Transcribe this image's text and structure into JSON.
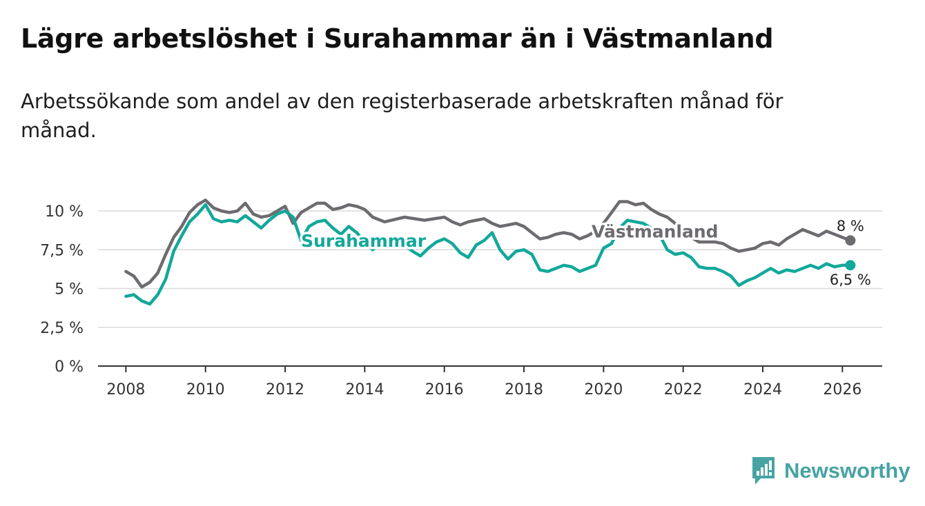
{
  "title": "Lägre arbetslöshet i Surahammar än i Västmanland",
  "subtitle": "Arbetssökande som andel av den registerbaserade arbetskraften månad för månad.",
  "brand": {
    "name": "Newsworthy",
    "icon": "newsworthy-logo-icon",
    "color": "#46a3a3"
  },
  "chart_data": {
    "type": "line",
    "title": "Lägre arbetslöshet i Surahammar än i Västmanland",
    "xlabel": "",
    "ylabel": "",
    "xlim": [
      2007.3,
      2027.0
    ],
    "ylim": [
      0,
      10
    ],
    "x_ticks": [
      {
        "value": 2008,
        "label": "2008"
      },
      {
        "value": 2010,
        "label": "2010"
      },
      {
        "value": 2012,
        "label": "2012"
      },
      {
        "value": 2014,
        "label": "2014"
      },
      {
        "value": 2016,
        "label": "2016"
      },
      {
        "value": 2018,
        "label": "2018"
      },
      {
        "value": 2020,
        "label": "2020"
      },
      {
        "value": 2022,
        "label": "2022"
      },
      {
        "value": 2024,
        "label": "2024"
      },
      {
        "value": 2026,
        "label": "2026"
      }
    ],
    "y_ticks": [
      {
        "value": 0,
        "label": "0 %"
      },
      {
        "value": 2.5,
        "label": "2,5 %"
      },
      {
        "value": 5,
        "label": "5 %"
      },
      {
        "value": 7.5,
        "label": "7,5 %"
      },
      {
        "value": 10,
        "label": "10 %"
      }
    ],
    "grid": true,
    "legend": "inline labels on lines",
    "series": [
      {
        "name": "Västmanland",
        "color": "#6e6b70",
        "end_label": "8 %",
        "end_label_position": "above",
        "label_at": 2019.7,
        "x": [
          2008.0,
          2008.2,
          2008.4,
          2008.6,
          2008.8,
          2009.0,
          2009.2,
          2009.4,
          2009.6,
          2009.8,
          2010.0,
          2010.2,
          2010.4,
          2010.6,
          2010.8,
          2011.0,
          2011.2,
          2011.4,
          2011.6,
          2011.8,
          2012.0,
          2012.2,
          2012.4,
          2012.6,
          2012.8,
          2013.0,
          2013.2,
          2013.4,
          2013.6,
          2013.8,
          2014.0,
          2014.2,
          2014.5,
          2015.0,
          2015.5,
          2016.0,
          2016.2,
          2016.4,
          2016.6,
          2016.8,
          2017.0,
          2017.2,
          2017.4,
          2017.6,
          2017.8,
          2018.0,
          2018.2,
          2018.4,
          2018.6,
          2018.8,
          2019.0,
          2019.2,
          2019.4,
          2019.6,
          2019.8,
          2020.0,
          2020.2,
          2020.4,
          2020.6,
          2020.8,
          2021.0,
          2021.2,
          2021.4,
          2021.6,
          2021.8,
          2022.0,
          2022.2,
          2022.4,
          2022.6,
          2022.8,
          2023.0,
          2023.2,
          2023.4,
          2023.6,
          2023.8,
          2024.0,
          2024.2,
          2024.4,
          2024.6,
          2024.8,
          2025.0,
          2025.2,
          2025.4,
          2025.6,
          2025.8,
          2026.0,
          2026.2
        ],
        "values": [
          6.1,
          5.8,
          5.1,
          5.4,
          6.0,
          7.2,
          8.3,
          9.0,
          9.9,
          10.4,
          10.7,
          10.2,
          10.0,
          9.9,
          10.0,
          10.5,
          9.8,
          9.6,
          9.7,
          10.0,
          10.3,
          9.2,
          9.9,
          10.2,
          10.5,
          10.5,
          10.1,
          10.2,
          10.4,
          10.3,
          10.1,
          9.6,
          9.3,
          9.6,
          9.4,
          9.6,
          9.3,
          9.1,
          9.3,
          9.4,
          9.5,
          9.2,
          9.0,
          9.1,
          9.2,
          9.0,
          8.6,
          8.2,
          8.3,
          8.5,
          8.6,
          8.5,
          8.2,
          8.4,
          8.7,
          9.2,
          9.9,
          10.6,
          10.6,
          10.4,
          10.5,
          10.1,
          9.8,
          9.6,
          9.2,
          8.8,
          8.3,
          8.0,
          8.0,
          8.0,
          7.9,
          7.6,
          7.4,
          7.5,
          7.6,
          7.9,
          8.0,
          7.8,
          8.2,
          8.5,
          8.8,
          8.6,
          8.4,
          8.7,
          8.5,
          8.3,
          8.1
        ]
      },
      {
        "name": "Surahammar",
        "color": "#12a89b",
        "end_label": "6,5 %",
        "end_label_position": "below",
        "label_at": 2012.4,
        "x": [
          2008.0,
          2008.2,
          2008.4,
          2008.6,
          2008.8,
          2009.0,
          2009.2,
          2009.4,
          2009.6,
          2009.8,
          2010.0,
          2010.2,
          2010.4,
          2010.6,
          2010.8,
          2011.0,
          2011.2,
          2011.4,
          2011.6,
          2011.8,
          2012.0,
          2012.2,
          2012.4,
          2012.6,
          2012.8,
          2013.0,
          2013.2,
          2013.4,
          2013.6,
          2013.8,
          2014.0,
          2014.2,
          2014.4,
          2014.6,
          2014.8,
          2015.0,
          2015.2,
          2015.4,
          2015.6,
          2015.8,
          2016.0,
          2016.2,
          2016.4,
          2016.6,
          2016.8,
          2017.0,
          2017.2,
          2017.4,
          2017.6,
          2017.8,
          2018.0,
          2018.2,
          2018.4,
          2018.6,
          2018.8,
          2019.0,
          2019.2,
          2019.4,
          2019.6,
          2019.8,
          2020.0,
          2020.2,
          2020.4,
          2020.6,
          2020.8,
          2021.0,
          2021.2,
          2021.4,
          2021.6,
          2021.8,
          2022.0,
          2022.2,
          2022.4,
          2022.6,
          2022.8,
          2023.0,
          2023.2,
          2023.4,
          2023.6,
          2023.8,
          2024.0,
          2024.2,
          2024.4,
          2024.6,
          2024.8,
          2025.0,
          2025.2,
          2025.4,
          2025.6,
          2025.8,
          2026.0,
          2026.2
        ],
        "values": [
          4.5,
          4.6,
          4.2,
          4.0,
          4.6,
          5.6,
          7.4,
          8.4,
          9.3,
          9.8,
          10.4,
          9.5,
          9.3,
          9.4,
          9.3,
          9.7,
          9.3,
          8.9,
          9.4,
          9.8,
          10.0,
          9.6,
          8.1,
          9.0,
          9.3,
          9.4,
          8.9,
          8.5,
          9.0,
          8.6,
          8.0,
          7.5,
          8.0,
          8.2,
          8.1,
          7.8,
          7.4,
          7.1,
          7.6,
          8.0,
          8.2,
          7.9,
          7.3,
          7.0,
          7.8,
          8.1,
          8.6,
          7.5,
          6.9,
          7.4,
          7.5,
          7.2,
          6.2,
          6.1,
          6.3,
          6.5,
          6.4,
          6.1,
          6.3,
          6.5,
          7.6,
          7.9,
          8.9,
          9.4,
          9.3,
          9.2,
          8.9,
          8.5,
          7.5,
          7.2,
          7.3,
          7.0,
          6.4,
          6.3,
          6.3,
          6.1,
          5.8,
          5.2,
          5.5,
          5.7,
          6.0,
          6.3,
          6.0,
          6.2,
          6.1,
          6.3,
          6.5,
          6.3,
          6.6,
          6.4,
          6.5,
          6.5
        ]
      }
    ]
  }
}
